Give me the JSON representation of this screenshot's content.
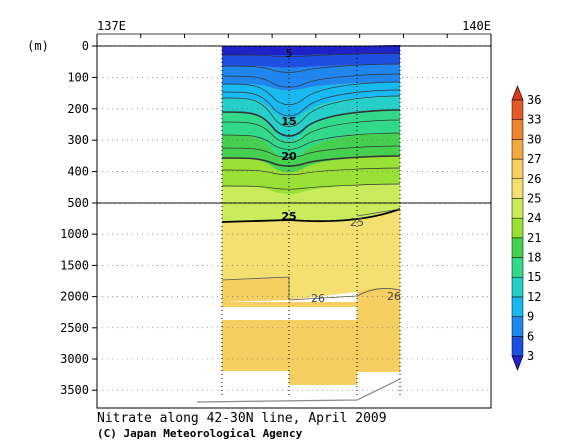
{
  "chart_data": {
    "type": "heatmap",
    "title": "Nitrate along 42-30N line, April 2009",
    "credit": "(C) Japan Meteorological Agency",
    "x_ticks": [
      "137E",
      "140E"
    ],
    "y_unit": "(m)",
    "upper_panel_depths": [
      0,
      100,
      200,
      300,
      400,
      500
    ],
    "lower_panel_depths": [
      1000,
      1500,
      2000,
      2500,
      3000,
      3500
    ],
    "contour_labels": [
      "5",
      "15",
      "20",
      "25",
      "25",
      "26",
      "26"
    ],
    "colorbar": {
      "levels": [
        3,
        6,
        9,
        12,
        15,
        18,
        21,
        24,
        25,
        26,
        27,
        30,
        33,
        36
      ],
      "colors": [
        "#1e22c8",
        "#1d4fe0",
        "#1f86ee",
        "#18b8f0",
        "#26d0c8",
        "#33d98a",
        "#46d050",
        "#9ae036",
        "#c9ec5c",
        "#f4e070",
        "#f6cf62",
        "#f3a842",
        "#ee8432",
        "#e25a28",
        "#d63a1e"
      ]
    }
  }
}
